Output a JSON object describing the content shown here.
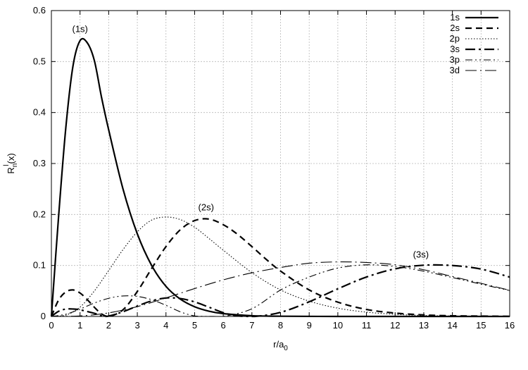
{
  "chart_data": {
    "type": "line",
    "title": "",
    "xlabel": "r/a",
    "xlabel_sub": "0",
    "ylabel": "R",
    "ylabel_sub": "n",
    "ylabel_sup": "l",
    "ylabel_tail": "(x)",
    "xlim": [
      0,
      16
    ],
    "ylim": [
      0,
      0.6
    ],
    "xticks": [
      0,
      1,
      2,
      3,
      4,
      5,
      6,
      7,
      8,
      9,
      10,
      11,
      12,
      13,
      14,
      15,
      16
    ],
    "yticks": [
      0,
      0.1,
      0.2,
      0.3,
      0.4,
      0.5,
      0.6
    ],
    "ytick_labels": [
      "0",
      "0.1",
      "0.2",
      "0.3",
      "0.4",
      "0.5",
      "0.6"
    ],
    "grid": true,
    "legend_position": "top-right",
    "series": [
      {
        "name": "1s",
        "style": "solid",
        "width": 2.2,
        "x": [
          0,
          0.25,
          0.5,
          0.75,
          1,
          1.25,
          1.5,
          1.75,
          2,
          2.5,
          3,
          3.5,
          4,
          4.5,
          5,
          5.5,
          6,
          7,
          8,
          10,
          12,
          16
        ],
        "y": [
          0,
          0.195,
          0.368,
          0.49,
          0.541,
          0.537,
          0.502,
          0.43,
          0.366,
          0.25,
          0.162,
          0.1,
          0.059,
          0.034,
          0.019,
          0.0103,
          0.0055,
          0.0015,
          0.0004,
          2e-05,
          0,
          0
        ]
      },
      {
        "name": "2s",
        "style": "dashed",
        "width": 2.2,
        "x": [
          0,
          0.25,
          0.5,
          0.75,
          1,
          1.25,
          1.5,
          1.75,
          2,
          2.5,
          3,
          3.5,
          4,
          4.5,
          5,
          5.5,
          6,
          6.5,
          7,
          7.5,
          8,
          9,
          10,
          11,
          12,
          13,
          14,
          16
        ],
        "y": [
          0,
          0.032,
          0.048,
          0.052,
          0.046,
          0.033,
          0.018,
          0.005,
          0,
          0.013,
          0.049,
          0.094,
          0.137,
          0.17,
          0.188,
          0.191,
          0.18,
          0.161,
          0.137,
          0.112,
          0.089,
          0.052,
          0.028,
          0.0138,
          0.0066,
          0.003,
          0.0013,
          0.0002
        ]
      },
      {
        "name": "2p",
        "style": "dotted",
        "width": 1.1,
        "x": [
          0,
          0.5,
          1,
          1.5,
          2,
          2.5,
          3,
          3.5,
          4,
          4.5,
          5,
          5.5,
          6,
          7,
          8,
          9,
          10,
          11,
          12,
          13,
          14,
          16
        ],
        "y": [
          0,
          0.0025,
          0.0183,
          0.05,
          0.09,
          0.131,
          0.166,
          0.189,
          0.195,
          0.19,
          0.175,
          0.153,
          0.13,
          0.086,
          0.052,
          0.03,
          0.0162,
          0.0084,
          0.0042,
          0.002,
          0.00094,
          0.0002
        ]
      },
      {
        "name": "3s",
        "style": "dashdot",
        "width": 2.2,
        "x": [
          0,
          0.25,
          0.5,
          0.75,
          1,
          1.5,
          1.9,
          2.5,
          3,
          3.5,
          4,
          4.5,
          5,
          5.5,
          6,
          6.5,
          7.1,
          8,
          9,
          10,
          11,
          12,
          13,
          14,
          15,
          16
        ],
        "y": [
          0,
          0.01,
          0.0143,
          0.0146,
          0.013,
          0.0062,
          0,
          0.0093,
          0.0204,
          0.0306,
          0.0362,
          0.0352,
          0.0285,
          0.0182,
          0.0075,
          0.0012,
          0,
          0.008,
          0.0287,
          0.0542,
          0.0773,
          0.0934,
          0.1005,
          0.0999,
          0.0929,
          0.0772
        ]
      },
      {
        "name": "3p",
        "style": "dash-dot-dot",
        "width": 1.1,
        "x": [
          0,
          0.5,
          1,
          1.5,
          2,
          2.5,
          3,
          3.5,
          4,
          4.5,
          5,
          5.5,
          6,
          7,
          8,
          9,
          10,
          11,
          12,
          13,
          14,
          15,
          16
        ],
        "y": [
          0,
          0.0043,
          0.0145,
          0.0263,
          0.0356,
          0.0402,
          0.0393,
          0.0328,
          0.0218,
          0.0091,
          0.001,
          0.0001,
          0.0,
          0.015,
          0.0518,
          0.0772,
          0.0949,
          0.1012,
          0.098,
          0.0887,
          0.0763,
          0.0633,
          0.0508
        ]
      },
      {
        "name": "3d",
        "style": "long-dash-dot",
        "width": 1.1,
        "x": [
          0,
          1,
          2,
          3,
          4,
          5,
          6,
          7,
          8,
          9,
          10,
          11,
          12,
          13,
          14,
          15,
          16
        ],
        "y": [
          0,
          0.001,
          0.007,
          0.0193,
          0.0364,
          0.0547,
          0.0717,
          0.0856,
          0.096,
          0.1044,
          0.107,
          0.1058,
          0.1014,
          0.0916,
          0.0783,
          0.065,
          0.0513
        ]
      }
    ],
    "annotations": [
      {
        "text": "(1s)",
        "x": 1.0,
        "y": 0.555
      },
      {
        "text": "(2s)",
        "x": 5.4,
        "y": 0.205
      },
      {
        "text": "(3s)",
        "x": 12.9,
        "y": 0.113
      }
    ]
  }
}
